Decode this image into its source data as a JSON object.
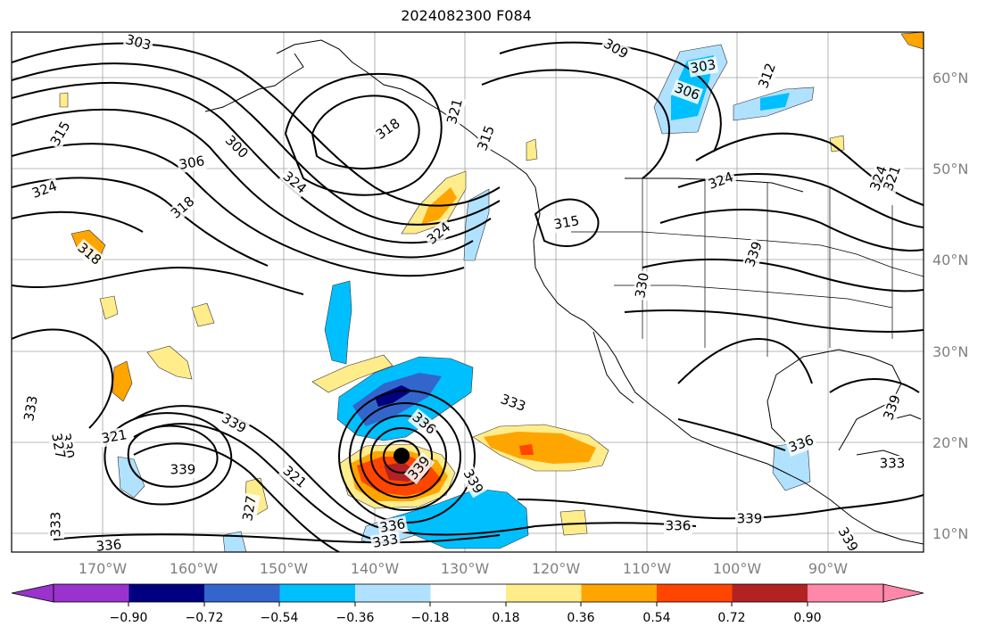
{
  "title": "2024082300 F084",
  "map": {
    "longitude_ticks": [
      "170°W",
      "160°W",
      "150°W",
      "140°W",
      "130°W",
      "120°W",
      "110°W",
      "100°W",
      "90°W"
    ],
    "latitude_ticks": [
      "60°N",
      "50°N",
      "40°N",
      "30°N",
      "20°N",
      "10°N"
    ],
    "contour_labels": [
      "303",
      "309",
      "303",
      "306",
      "312",
      "315",
      "300",
      "318",
      "315",
      "321",
      "306",
      "324",
      "324",
      "318",
      "324",
      "315",
      "324",
      "324",
      "321",
      "318",
      "330",
      "339",
      "333",
      "336",
      "333",
      "339",
      "330",
      "327",
      "321",
      "321",
      "339",
      "327",
      "339",
      "336",
      "333",
      "336",
      "339",
      "336",
      "339",
      "339",
      "336",
      "333",
      "339",
      "333"
    ],
    "colors": {
      "contour": "#000000",
      "gridline": "#a0a0a0",
      "coastline": "#000000"
    },
    "storm_marker": "black-filled-circle"
  },
  "colorbar": {
    "ticks": [
      "−0.90",
      "−0.72",
      "−0.54",
      "−0.36",
      "−0.18",
      "0.18",
      "0.36",
      "0.54",
      "0.72",
      "0.90"
    ],
    "colors": [
      "#9933cc",
      "#000080",
      "#3366cc",
      "#00bfff",
      "#b0e2ff",
      "#ffffff",
      "#ffec8b",
      "#ffa500",
      "#ff4500",
      "#b22222",
      "#ff88aa"
    ]
  }
}
